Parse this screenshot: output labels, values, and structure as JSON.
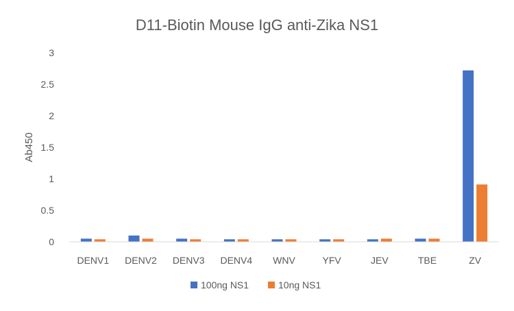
{
  "chart_data": {
    "type": "bar",
    "title": "D11-Biotin Mouse IgG anti-Zika NS1",
    "xlabel": "",
    "ylabel": "Ab450",
    "ylim": [
      0,
      3
    ],
    "yticks": [
      "0",
      "0.5",
      "1",
      "1.5",
      "2",
      "2.5",
      "3"
    ],
    "grid": false,
    "legend_position": "bottom",
    "categories": [
      "DENV1",
      "DENV2",
      "DENV3",
      "DENV4",
      "WNV",
      "YFV",
      "JEV",
      "TBE",
      "ZV"
    ],
    "series": [
      {
        "name": "100ng NS1",
        "color": "#4472C4",
        "values": [
          0.05,
          0.1,
          0.05,
          0.04,
          0.04,
          0.04,
          0.04,
          0.05,
          2.72
        ]
      },
      {
        "name": "10ng NS1",
        "color": "#ED7D31",
        "values": [
          0.04,
          0.05,
          0.04,
          0.04,
          0.04,
          0.04,
          0.05,
          0.05,
          0.91
        ]
      }
    ]
  }
}
